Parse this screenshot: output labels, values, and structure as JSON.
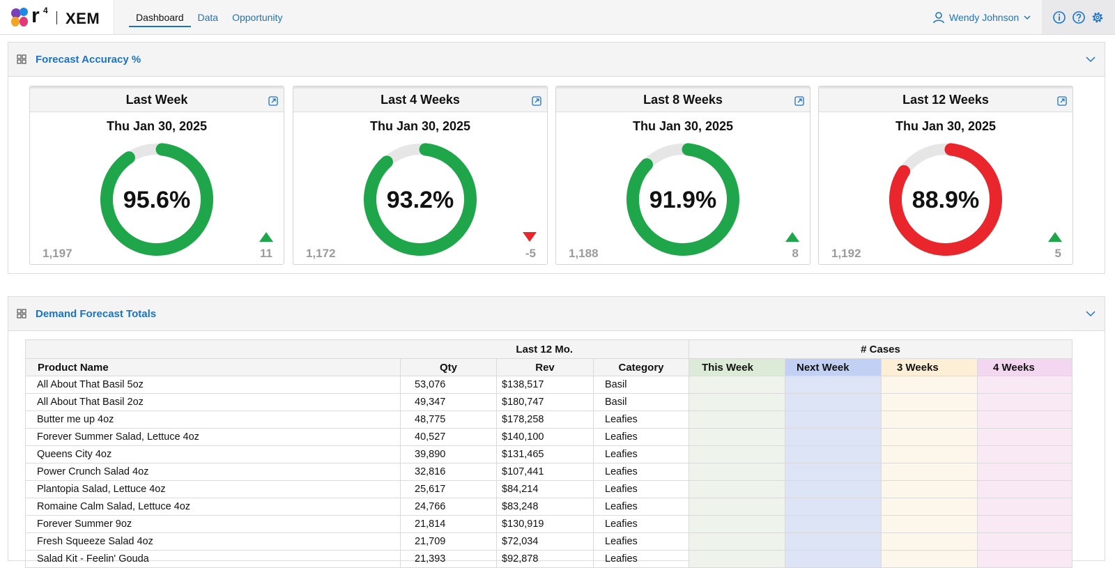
{
  "app": {
    "brand": "XEM",
    "logo_mark": "r",
    "logo_superscript": "4",
    "colors": {
      "accent": "#1a73c8",
      "good": "#1fa64a",
      "bad": "#e8262b"
    }
  },
  "nav": {
    "items": [
      {
        "label": "Dashboard",
        "active": true
      },
      {
        "label": "Data",
        "active": false
      },
      {
        "label": "Opportunity",
        "active": false
      }
    ]
  },
  "user": {
    "name": "Wendy Johnson",
    "icon": "user-icon"
  },
  "utilities": [
    "info-icon",
    "help-icon",
    "settings-icon"
  ],
  "forecast_panel": {
    "title": "Forecast Accuracy %",
    "cards": [
      {
        "title": "Last Week",
        "date": "Thu Jan 30, 2025",
        "percent": 95.6,
        "value": "95.6%",
        "count": "1,197",
        "delta": "11",
        "trend": "up",
        "status": "good"
      },
      {
        "title": "Last 4 Weeks",
        "date": "Thu Jan 30, 2025",
        "percent": 93.2,
        "value": "93.2%",
        "count": "1,172",
        "delta": "-5",
        "trend": "down",
        "status": "good"
      },
      {
        "title": "Last 8 Weeks",
        "date": "Thu Jan 30, 2025",
        "percent": 91.9,
        "value": "91.9%",
        "count": "1,188",
        "delta": "8",
        "trend": "up",
        "status": "good"
      },
      {
        "title": "Last 12 Weeks",
        "date": "Thu Jan 30, 2025",
        "percent": 88.9,
        "value": "88.9%",
        "count": "1,192",
        "delta": "5",
        "trend": "up",
        "status": "bad"
      }
    ]
  },
  "demand_panel": {
    "title": "Demand Forecast Totals",
    "group_headers": {
      "last12": "Last 12 Mo.",
      "cases": "# Cases"
    },
    "columns": {
      "product": "Product Name",
      "qty": "Qty",
      "rev": "Rev",
      "category": "Category",
      "this_week": "This Week",
      "next_week": "Next Week",
      "three_weeks": "3 Weeks",
      "four_weeks": "4 Weeks"
    },
    "rows": [
      {
        "product": "All About That Basil 5oz",
        "qty": "53,076",
        "rev": "$138,517",
        "category": "Basil"
      },
      {
        "product": "All About That Basil 2oz",
        "qty": "49,347",
        "rev": "$180,747",
        "category": "Basil"
      },
      {
        "product": "Butter me up 4oz",
        "qty": "48,775",
        "rev": "$178,258",
        "category": "Leafies"
      },
      {
        "product": "Forever Summer Salad, Lettuce 4oz",
        "qty": "40,527",
        "rev": "$140,100",
        "category": "Leafies"
      },
      {
        "product": "Queens City 4oz",
        "qty": "39,890",
        "rev": "$131,465",
        "category": "Leafies"
      },
      {
        "product": "Power Crunch Salad 4oz",
        "qty": "32,816",
        "rev": "$107,441",
        "category": "Leafies"
      },
      {
        "product": "Plantopia Salad, Lettuce 4oz",
        "qty": "25,617",
        "rev": "$84,214",
        "category": "Leafies"
      },
      {
        "product": "Romaine Calm Salad, Lettuce 4oz",
        "qty": "24,766",
        "rev": "$83,248",
        "category": "Leafies"
      },
      {
        "product": "Forever Summer 9oz",
        "qty": "21,814",
        "rev": "$130,919",
        "category": "Leafies"
      },
      {
        "product": "Fresh Squeeze Salad 4oz",
        "qty": "21,709",
        "rev": "$72,034",
        "category": "Leafies"
      },
      {
        "product": "Salad Kit - Feelin' Gouda",
        "qty": "21,393",
        "rev": "$92,878",
        "category": "Leafies"
      }
    ]
  }
}
